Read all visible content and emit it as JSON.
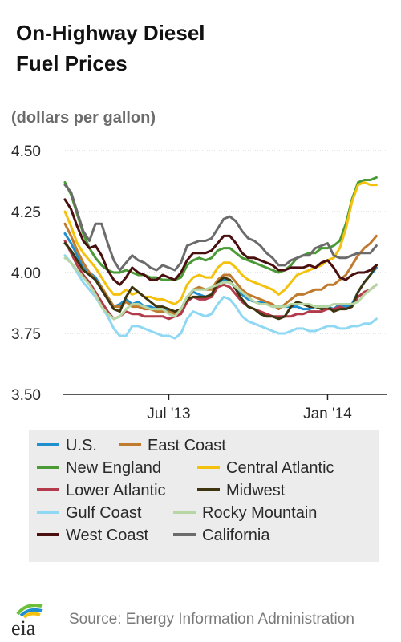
{
  "header": {
    "title_line1": "On-Highway Diesel",
    "title_line2": "Fuel Prices",
    "units": "(dollars per gallon)"
  },
  "footer": {
    "logo_text": "eia",
    "source": "Source: Energy Information Administration"
  },
  "colors": {
    "U.S.": "#1f8fce",
    "East Coast": "#c07a2e",
    "New England": "#4a9a36",
    "Central Atlantic": "#f4c20d",
    "Lower Atlantic": "#b23a4b",
    "Midwest": "#3d3410",
    "Gulf Coast": "#8fd8f4",
    "Rocky Mountain": "#b6d7a4",
    "West Coast": "#4a1010",
    "California": "#6b6b6b"
  },
  "chart_data": {
    "type": "line",
    "ylim": [
      3.5,
      4.5
    ],
    "yticks": [
      "3.50",
      "3.75",
      "4.00",
      "4.25",
      "4.50"
    ],
    "x_ticks": [
      {
        "label": "Jul '13",
        "week": 17
      },
      {
        "label": "Jan '14",
        "week": 43
      }
    ],
    "x_range": [
      0,
      52
    ],
    "grid": "horizontal",
    "legend_position": "bottom",
    "series": [
      {
        "name": "U.S.",
        "values": [
          4.16,
          4.12,
          4.07,
          4.02,
          4.0,
          3.98,
          3.94,
          3.9,
          3.86,
          3.87,
          3.89,
          3.87,
          3.88,
          3.86,
          3.86,
          3.85,
          3.86,
          3.84,
          3.83,
          3.85,
          3.9,
          3.92,
          3.91,
          3.9,
          3.91,
          3.95,
          3.97,
          3.96,
          3.94,
          3.91,
          3.89,
          3.88,
          3.88,
          3.87,
          3.86,
          3.86,
          3.86,
          3.86,
          3.86,
          3.85,
          3.85,
          3.86,
          3.86,
          3.86,
          3.85,
          3.87,
          3.86,
          3.87,
          3.92,
          3.96,
          3.99,
          4.02
        ]
      },
      {
        "name": "East Coast",
        "values": [
          4.2,
          4.15,
          4.09,
          4.04,
          4.0,
          3.97,
          3.94,
          3.9,
          3.86,
          3.86,
          3.88,
          3.86,
          3.86,
          3.85,
          3.85,
          3.84,
          3.84,
          3.84,
          3.83,
          3.84,
          3.89,
          3.93,
          3.94,
          3.93,
          3.93,
          3.97,
          3.99,
          3.99,
          3.96,
          3.93,
          3.91,
          3.9,
          3.89,
          3.88,
          3.87,
          3.85,
          3.87,
          3.89,
          3.91,
          3.91,
          3.92,
          3.93,
          3.93,
          3.95,
          3.95,
          3.97,
          3.99,
          4.03,
          4.07,
          4.1,
          4.12,
          4.15
        ]
      },
      {
        "name": "New England",
        "values": [
          4.37,
          4.32,
          4.24,
          4.16,
          4.1,
          4.06,
          4.03,
          4.01,
          4.0,
          4.0,
          4.01,
          4.0,
          3.99,
          3.99,
          3.98,
          3.98,
          3.97,
          3.97,
          3.97,
          3.98,
          4.03,
          4.05,
          4.06,
          4.05,
          4.06,
          4.09,
          4.1,
          4.1,
          4.08,
          4.06,
          4.05,
          4.04,
          4.03,
          4.02,
          4.01,
          4.0,
          4.01,
          4.03,
          4.06,
          4.07,
          4.08,
          4.08,
          4.1,
          4.1,
          4.11,
          4.13,
          4.2,
          4.3,
          4.37,
          4.38,
          4.38,
          4.39
        ]
      },
      {
        "name": "Central Atlantic",
        "values": [
          4.25,
          4.19,
          4.12,
          4.08,
          4.05,
          4.02,
          3.98,
          3.94,
          3.91,
          3.91,
          3.93,
          3.91,
          3.92,
          3.9,
          3.9,
          3.89,
          3.89,
          3.88,
          3.87,
          3.89,
          3.95,
          3.98,
          3.99,
          3.98,
          3.98,
          4.02,
          4.04,
          4.04,
          4.02,
          3.99,
          3.97,
          3.96,
          3.95,
          3.94,
          3.93,
          3.91,
          3.93,
          3.96,
          3.99,
          4.0,
          4.01,
          4.02,
          4.03,
          4.05,
          4.06,
          4.1,
          4.18,
          4.29,
          4.36,
          4.37,
          4.36,
          4.36
        ]
      },
      {
        "name": "Lower Atlantic",
        "values": [
          4.13,
          4.08,
          4.03,
          3.99,
          3.96,
          3.92,
          3.88,
          3.84,
          3.81,
          3.82,
          3.84,
          3.83,
          3.83,
          3.82,
          3.82,
          3.82,
          3.82,
          3.81,
          3.82,
          3.83,
          3.88,
          3.9,
          3.89,
          3.89,
          3.9,
          3.94,
          3.95,
          3.94,
          3.91,
          3.88,
          3.86,
          3.85,
          3.84,
          3.83,
          3.82,
          3.82,
          3.82,
          3.82,
          3.83,
          3.83,
          3.84,
          3.84,
          3.84,
          3.85,
          3.85,
          3.86,
          3.85,
          3.86,
          3.9,
          3.92,
          3.93,
          3.95
        ]
      },
      {
        "name": "Midwest",
        "values": [
          4.12,
          4.09,
          4.05,
          4.01,
          3.99,
          3.97,
          3.93,
          3.89,
          3.85,
          3.84,
          3.9,
          3.94,
          3.92,
          3.9,
          3.88,
          3.86,
          3.86,
          3.85,
          3.84,
          3.85,
          3.89,
          3.9,
          3.9,
          3.9,
          3.91,
          3.96,
          3.98,
          3.97,
          3.93,
          3.89,
          3.86,
          3.85,
          3.83,
          3.82,
          3.82,
          3.81,
          3.82,
          3.86,
          3.88,
          3.87,
          3.86,
          3.86,
          3.85,
          3.86,
          3.84,
          3.85,
          3.85,
          3.86,
          3.92,
          3.96,
          3.99,
          4.03
        ]
      },
      {
        "name": "Gulf Coast",
        "values": [
          4.07,
          4.04,
          4.0,
          3.96,
          3.93,
          3.9,
          3.86,
          3.82,
          3.77,
          3.74,
          3.74,
          3.78,
          3.78,
          3.77,
          3.76,
          3.75,
          3.74,
          3.74,
          3.73,
          3.75,
          3.81,
          3.84,
          3.83,
          3.82,
          3.83,
          3.87,
          3.9,
          3.89,
          3.86,
          3.82,
          3.8,
          3.79,
          3.78,
          3.77,
          3.76,
          3.75,
          3.75,
          3.76,
          3.77,
          3.77,
          3.76,
          3.76,
          3.77,
          3.78,
          3.78,
          3.77,
          3.77,
          3.78,
          3.78,
          3.79,
          3.79,
          3.81
        ]
      },
      {
        "name": "Rocky Mountain",
        "values": [
          4.06,
          4.04,
          4.01,
          3.98,
          3.95,
          3.91,
          3.86,
          3.83,
          3.81,
          3.82,
          3.85,
          3.87,
          3.87,
          3.86,
          3.85,
          3.85,
          3.85,
          3.83,
          3.82,
          3.85,
          3.9,
          3.93,
          3.93,
          3.93,
          3.94,
          3.95,
          3.96,
          3.96,
          3.94,
          3.92,
          3.9,
          3.88,
          3.87,
          3.87,
          3.86,
          3.86,
          3.86,
          3.87,
          3.87,
          3.87,
          3.87,
          3.86,
          3.86,
          3.86,
          3.87,
          3.87,
          3.87,
          3.87,
          3.88,
          3.91,
          3.93,
          3.95
        ]
      },
      {
        "name": "West Coast",
        "values": [
          4.3,
          4.26,
          4.19,
          4.13,
          4.1,
          4.11,
          4.07,
          4.01,
          3.97,
          3.95,
          3.98,
          4.02,
          4.0,
          3.99,
          3.97,
          3.97,
          3.99,
          3.98,
          3.97,
          4.0,
          4.05,
          4.08,
          4.08,
          4.08,
          4.09,
          4.12,
          4.15,
          4.15,
          4.12,
          4.08,
          4.06,
          4.06,
          4.05,
          4.04,
          4.03,
          4.01,
          4.01,
          4.02,
          4.02,
          4.02,
          4.03,
          4.02,
          4.04,
          4.05,
          4.02,
          3.98,
          3.97,
          3.99,
          4.0,
          4.0,
          4.01,
          4.03
        ]
      },
      {
        "name": "California",
        "values": [
          4.36,
          4.33,
          4.25,
          4.17,
          4.13,
          4.2,
          4.2,
          4.12,
          4.05,
          4.01,
          4.04,
          4.07,
          4.05,
          4.04,
          4.02,
          4.01,
          4.03,
          4.02,
          4.01,
          4.04,
          4.11,
          4.12,
          4.13,
          4.13,
          4.14,
          4.18,
          4.22,
          4.23,
          4.21,
          4.17,
          4.14,
          4.13,
          4.11,
          4.08,
          4.06,
          4.03,
          4.03,
          4.05,
          4.06,
          4.07,
          4.07,
          4.1,
          4.11,
          4.12,
          4.07,
          4.06,
          4.06,
          4.07,
          4.08,
          4.08,
          4.08,
          4.11
        ]
      }
    ]
  }
}
